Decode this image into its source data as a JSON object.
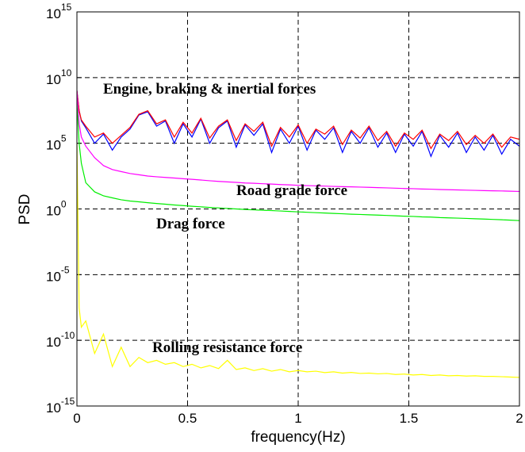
{
  "chart_data": {
    "type": "line",
    "ylabel": "PSD",
    "xlabel": "frequency(Hz)",
    "yscale": "log",
    "grid": true,
    "xlim": [
      0,
      2
    ],
    "ylim": [
      1e-15,
      1000000000000000.0
    ],
    "xticks": [
      0,
      0.5,
      1,
      1.5,
      2
    ],
    "yticks": [
      {
        "value": 1e-15,
        "label": "10",
        "exponent": "-15"
      },
      {
        "value": 1e-10,
        "label": "10",
        "exponent": "-10"
      },
      {
        "value": 1e-05,
        "label": "10",
        "exponent": "-5"
      },
      {
        "value": 1,
        "label": "10",
        "exponent": "0"
      },
      {
        "value": 100000.0,
        "label": "10",
        "exponent": "5"
      },
      {
        "value": 10000000000.0,
        "label": "10",
        "exponent": "10"
      },
      {
        "value": 1000000000000000.0,
        "label": "10",
        "exponent": "15"
      }
    ],
    "x": [
      0,
      0.01,
      0.02,
      0.04,
      0.08,
      0.12,
      0.16,
      0.2,
      0.24,
      0.28,
      0.32,
      0.36,
      0.4,
      0.44,
      0.48,
      0.52,
      0.56,
      0.6,
      0.64,
      0.68,
      0.72,
      0.76,
      0.8,
      0.84,
      0.88,
      0.92,
      0.96,
      1.0,
      1.04,
      1.08,
      1.12,
      1.16,
      1.2,
      1.24,
      1.28,
      1.32,
      1.36,
      1.4,
      1.44,
      1.48,
      1.52,
      1.56,
      1.6,
      1.64,
      1.68,
      1.72,
      1.76,
      1.8,
      1.84,
      1.88,
      1.92,
      1.96,
      2.0
    ],
    "series": [
      {
        "color": "#0000ff",
        "values": [
          1000000000.0,
          30000000.0,
          5000000.0,
          1500000.0,
          100000.0,
          500000.0,
          30000.0,
          300000.0,
          1200000.0,
          14000000.0,
          25000000.0,
          2000000.0,
          5000000.0,
          100000.0,
          3000000.0,
          300000.0,
          7000000.0,
          100000.0,
          1500000.0,
          5000000.0,
          50000.0,
          2500000.0,
          400000.0,
          3000000.0,
          20000.0,
          1200000.0,
          100000.0,
          2000000.0,
          30000.0,
          1000000.0,
          200000.0,
          1500000.0,
          20000.0,
          800000.0,
          100000.0,
          1500000.0,
          50000.0,
          600000.0,
          20000.0,
          500000.0,
          60000.0,
          800000.0,
          10000.0,
          400000.0,
          50000.0,
          600000.0,
          20000.0,
          300000.0,
          30000.0,
          400000.0,
          15000.0,
          200000.0,
          60000.0
        ]
      },
      {
        "name": "Engine, braking & inertial forces",
        "color": "#ff0000",
        "values": [
          1000000000.0,
          30000000.0,
          6000000.0,
          2000000.0,
          300000.0,
          600000.0,
          100000.0,
          400000.0,
          1600000.0,
          16000000.0,
          30000000.0,
          3000000.0,
          6000000.0,
          300000.0,
          4000000.0,
          600000.0,
          8000000.0,
          250000.0,
          2000000.0,
          6000000.0,
          160000.0,
          3000000.0,
          800000.0,
          4000000.0,
          60000.0,
          1600000.0,
          300000.0,
          2500000.0,
          100000.0,
          1200000.0,
          500000.0,
          2000000.0,
          80000.0,
          1000000.0,
          250000.0,
          2000000.0,
          160000.0,
          800000.0,
          60000.0,
          600000.0,
          200000.0,
          1000000.0,
          40000.0,
          500000.0,
          160000.0,
          800000.0,
          80000.0,
          400000.0,
          100000.0,
          500000.0,
          50000.0,
          300000.0,
          200000.0
        ]
      },
      {
        "name": "Road grade force",
        "color": "#ff00ff",
        "values": [
          1000000000.0,
          3000000.0,
          300000.0,
          60000.0,
          8000.0,
          2000.0,
          1000.0,
          700,
          500,
          400,
          320,
          280,
          250,
          225,
          200,
          180,
          160,
          140,
          125,
          115,
          105,
          95,
          90,
          83,
          78,
          72,
          68,
          63,
          60,
          58,
          55,
          52,
          50,
          48,
          46,
          44,
          42,
          40,
          38,
          36,
          35,
          33,
          32,
          30,
          29,
          28,
          27,
          26,
          25,
          24,
          23.5,
          22.5,
          21.5
        ]
      },
      {
        "name": "Drag force",
        "color": "#00ee00",
        "values": [
          100000000.0,
          100000.0,
          3000.0,
          100,
          20,
          10,
          7,
          5,
          4,
          3.5,
          3,
          2.6,
          2.3,
          2,
          1.8,
          1.6,
          1.45,
          1.3,
          1.2,
          1.1,
          1,
          0.92,
          0.85,
          0.8,
          0.75,
          0.7,
          0.65,
          0.6,
          0.56,
          0.52,
          0.49,
          0.46,
          0.43,
          0.4,
          0.38,
          0.36,
          0.34,
          0.32,
          0.3,
          0.28,
          0.27,
          0.25,
          0.24,
          0.22,
          0.21,
          0.2,
          0.19,
          0.18,
          0.17,
          0.16,
          0.15,
          0.14,
          0.13
        ]
      },
      {
        "name": "Rolling resistance force",
        "color": "#ffff00",
        "values": [
          100000.0,
          3e-08,
          1e-09,
          3e-09,
          1e-11,
          3e-10,
          1e-12,
          3e-11,
          1e-12,
          5e-12,
          2e-12,
          3e-12,
          1.5e-12,
          2e-12,
          1e-12,
          1.5e-12,
          8e-13,
          1.2e-12,
          7e-13,
          3e-12,
          6e-13,
          8e-13,
          5e-13,
          7e-13,
          4.5e-13,
          6e-13,
          4e-13,
          5e-13,
          4e-13,
          4.5e-13,
          3.5e-13,
          4e-13,
          3.2e-13,
          3.6e-13,
          3e-13,
          3.2e-13,
          2.8e-13,
          3e-13,
          2.5e-13,
          2.7e-13,
          2.3e-13,
          2.5e-13,
          2.1e-13,
          2.3e-13,
          2e-13,
          2.1e-13,
          1.9e-13,
          2e-13,
          1.8e-13,
          1.8e-13,
          1.7e-13,
          1.6e-13,
          1.5e-13
        ]
      }
    ]
  }
}
